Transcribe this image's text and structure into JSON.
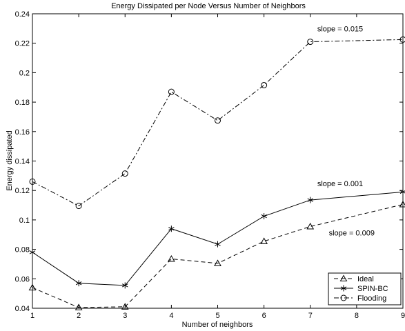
{
  "chart_data": {
    "type": "line",
    "title": "Energy Dissipated per Node Versus Number of Neighbors",
    "xlabel": "Number of neighbors",
    "ylabel": "Energy dissipated",
    "x": [
      1,
      2,
      3,
      4,
      5,
      6,
      7,
      8,
      9
    ],
    "xlim": [
      1,
      9
    ],
    "ylim": [
      0.04,
      0.24
    ],
    "xticks": [
      "1",
      "2",
      "3",
      "4",
      "5",
      "6",
      "7",
      "8",
      "9"
    ],
    "yticks": [
      "0.04",
      "0.06",
      "0.08",
      "0.1",
      "0.12",
      "0.14",
      "0.16",
      "0.18",
      "0.2",
      "0.22",
      "0.24"
    ],
    "grid": false,
    "legend_position": "bottom-right",
    "series": [
      {
        "name": "Ideal",
        "marker": "triangle",
        "line_style": "dashed",
        "color": "#000000",
        "x": [
          1,
          2,
          3,
          4,
          5,
          6,
          7,
          9
        ],
        "values": [
          0.054,
          0.0405,
          0.041,
          0.0735,
          0.0705,
          0.0855,
          0.0955,
          0.1105
        ]
      },
      {
        "name": "SPIN-BC",
        "marker": "star",
        "line_style": "solid",
        "color": "#000000",
        "x": [
          1,
          2,
          3,
          4,
          5,
          6,
          7,
          9
        ],
        "values": [
          0.078,
          0.057,
          0.0555,
          0.094,
          0.0835,
          0.1025,
          0.1135,
          0.119
        ]
      },
      {
        "name": "Flooding",
        "marker": "circle",
        "line_style": "dashdot",
        "color": "#000000",
        "x": [
          1,
          2,
          3,
          4,
          5,
          6,
          7,
          9
        ],
        "values": [
          0.126,
          0.1095,
          0.1315,
          0.187,
          0.1675,
          0.1915,
          0.221,
          0.2225
        ]
      }
    ],
    "annotations": [
      {
        "text": "slope = 0.015",
        "x": 7.15,
        "y": 0.228
      },
      {
        "text": "slope = 0.001",
        "x": 7.15,
        "y": 0.123
      },
      {
        "text": "slope = 0.009",
        "x": 7.4,
        "y": 0.0895
      }
    ]
  }
}
